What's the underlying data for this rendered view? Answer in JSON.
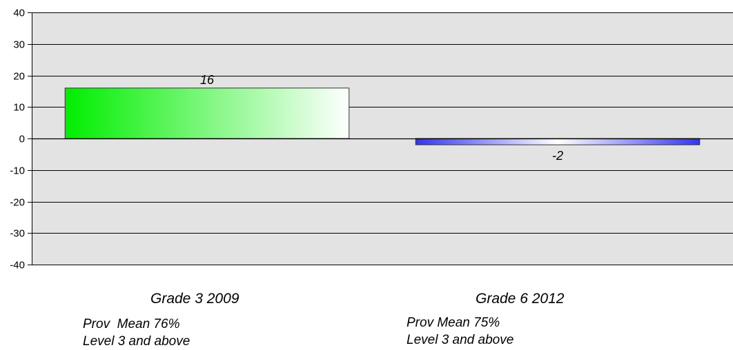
{
  "chart_data": {
    "type": "bar",
    "categories": [
      "Grade 3 2009",
      "Grade 6 2012"
    ],
    "category_notes": [
      [
        "Prov  Mean 76%",
        "Level 3 and above"
      ],
      [
        "Prov Mean 75%",
        "Level 3 and above"
      ]
    ],
    "values": [
      16,
      -2
    ],
    "data_labels": [
      "16",
      "-2"
    ],
    "ylim": [
      -40,
      40
    ],
    "yticks": [
      40,
      30,
      20,
      10,
      0,
      -10,
      -20,
      -30,
      -40
    ],
    "ytick_labels": [
      "40",
      "30",
      "20",
      "10",
      "0",
      "-10",
      "-20",
      "-30",
      "-40"
    ],
    "grid": true,
    "bar_gradients": [
      {
        "from": "#00ee00",
        "to": "#ffffff"
      },
      {
        "from": "#3535ee",
        "to": "#ffffff"
      }
    ],
    "plot_background": "#e3e3e3"
  }
}
